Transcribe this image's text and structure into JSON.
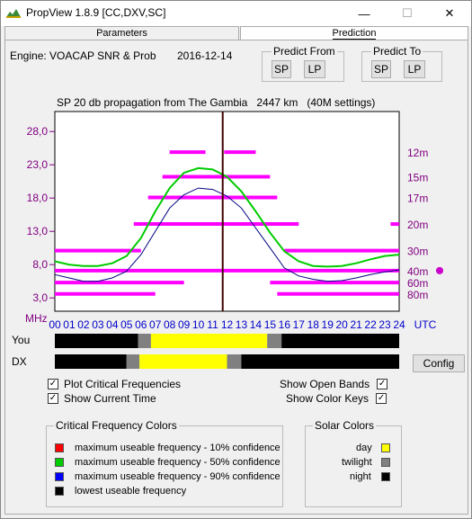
{
  "window": {
    "title": "PropView 1.8.9  [CC,DXV,SC]",
    "minimize": "—",
    "maximize": "☐",
    "close": "✕"
  },
  "tabs": [
    {
      "label": "Parameters"
    },
    {
      "label": "Prediction"
    }
  ],
  "engine": {
    "label": "Engine:  VOACAP SNR & Prob",
    "date": "2016-12-14"
  },
  "predict_from": {
    "title": "Predict From",
    "sp": "SP",
    "lp": "LP"
  },
  "predict_to": {
    "title": "Predict To",
    "sp": "SP",
    "lp": "LP"
  },
  "plot": {
    "title": "SP 20 db propagation from The Gambia   2447 km   (40M settings)",
    "y_unit": "MHz",
    "x_unit": "UTC",
    "y_ticks": [
      "28.0",
      "23.0",
      "18.0",
      "13.0",
      "8.0",
      "3.0"
    ],
    "x_ticks": [
      "00",
      "01",
      "02",
      "03",
      "04",
      "05",
      "06",
      "07",
      "08",
      "09",
      "10",
      "11",
      "12",
      "13",
      "14",
      "15",
      "16",
      "17",
      "18",
      "19",
      "20",
      "21",
      "22",
      "23",
      "24"
    ],
    "bands": [
      "12m",
      "15m",
      "17m",
      "20m",
      "30m",
      "40m",
      "60m",
      "80m"
    ],
    "selected_band": "40m"
  },
  "chart_data": {
    "type": "line",
    "title": "SP 20 db propagation from The Gambia   2447 km   (40M settings)",
    "xlabel": "UTC",
    "ylabel": "MHz",
    "xlim": [
      0,
      24
    ],
    "ylim": [
      1,
      31
    ],
    "current_time_utc": 11.7,
    "series": [
      {
        "name": "maximum useable frequency - 50% confidence",
        "color": "#00cc00",
        "x": [
          0,
          1,
          2,
          3,
          4,
          5,
          6,
          7,
          8,
          9,
          10,
          11,
          12,
          13,
          14,
          15,
          16,
          17,
          18,
          19,
          20,
          21,
          22,
          23,
          24
        ],
        "y": [
          8.5,
          8.0,
          7.8,
          7.8,
          8.2,
          9.3,
          12.0,
          16.0,
          19.5,
          21.8,
          22.5,
          22.3,
          21.2,
          19.0,
          16.0,
          12.8,
          10.0,
          8.5,
          7.8,
          7.7,
          7.8,
          8.2,
          8.8,
          9.3,
          9.5
        ]
      },
      {
        "name": "maximum useable frequency - 90% confidence",
        "color": "#000080",
        "x": [
          0,
          1,
          2,
          3,
          4,
          5,
          6,
          7,
          8,
          9,
          10,
          11,
          12,
          13,
          14,
          15,
          16,
          17,
          18,
          19,
          20,
          21,
          22,
          23,
          24
        ],
        "y": [
          6.5,
          6.0,
          5.5,
          5.5,
          6.0,
          7.0,
          9.5,
          13.0,
          16.5,
          18.5,
          19.5,
          19.3,
          18.3,
          16.5,
          13.5,
          10.5,
          7.5,
          6.3,
          5.8,
          5.5,
          5.6,
          6.0,
          6.5,
          6.9,
          7.2
        ]
      }
    ],
    "open_band_segments": [
      {
        "band": "12m",
        "mhz": 24.9,
        "from": 8,
        "to": 10.5
      },
      {
        "band": "12m",
        "mhz": 24.9,
        "from": 11.8,
        "to": 14
      },
      {
        "band": "15m",
        "mhz": 21.2,
        "from": 7.5,
        "to": 15
      },
      {
        "band": "17m",
        "mhz": 18.1,
        "from": 6.5,
        "to": 15.5
      },
      {
        "band": "20m",
        "mhz": 14.1,
        "from": 5.5,
        "to": 17
      },
      {
        "band": "20m",
        "mhz": 14.1,
        "from": 23.4,
        "to": 24
      },
      {
        "band": "30m",
        "mhz": 10.1,
        "from": 0,
        "to": 6
      },
      {
        "band": "30m",
        "mhz": 10.1,
        "from": 16,
        "to": 24
      },
      {
        "band": "40m",
        "mhz": 7.1,
        "from": 0,
        "to": 24
      },
      {
        "band": "60m",
        "mhz": 5.3,
        "from": 0,
        "to": 9
      },
      {
        "band": "60m",
        "mhz": 5.3,
        "from": 15,
        "to": 24
      },
      {
        "band": "80m",
        "mhz": 3.6,
        "from": 0,
        "to": 7
      },
      {
        "band": "80m",
        "mhz": 3.6,
        "from": 15.5,
        "to": 24
      }
    ]
  },
  "solar_rows": {
    "you_label": "You",
    "dx_label": "DX",
    "you": [
      {
        "state": "night",
        "from": 0,
        "to": 5.8
      },
      {
        "state": "twilight",
        "from": 5.8,
        "to": 6.7
      },
      {
        "state": "day",
        "from": 6.7,
        "to": 14.8
      },
      {
        "state": "twilight",
        "from": 14.8,
        "to": 15.8
      },
      {
        "state": "night",
        "from": 15.8,
        "to": 24
      }
    ],
    "dx": [
      {
        "state": "night",
        "from": 0,
        "to": 5.0
      },
      {
        "state": "twilight",
        "from": 5.0,
        "to": 5.9
      },
      {
        "state": "day",
        "from": 5.9,
        "to": 12.0
      },
      {
        "state": "twilight",
        "from": 12.0,
        "to": 13.0
      },
      {
        "state": "night",
        "from": 13.0,
        "to": 24
      }
    ]
  },
  "config_button": "Config",
  "options": {
    "plot_critical": "Plot Critical Frequencies",
    "show_current_time": "Show Current Time",
    "show_open_bands": "Show Open Bands",
    "show_color_keys": "Show Color Keys",
    "check_mark": "✓"
  },
  "crit_legend": {
    "title": "Critical Frequency Colors",
    "items": [
      {
        "label": "maximum useable frequency  - 10% confidence",
        "color": "#ff0000"
      },
      {
        "label": "maximum useable frequency  - 50% confidence",
        "color": "#00cc00"
      },
      {
        "label": "maximum useable frequency  - 90% confidence",
        "color": "#0000ff"
      },
      {
        "label": "lowest useable frequency",
        "color": "#000000"
      }
    ]
  },
  "solar_legend": {
    "title": "Solar Colors",
    "items": [
      {
        "label": "day",
        "color": "#ffff00"
      },
      {
        "label": "twilight",
        "color": "#808080"
      },
      {
        "label": "night",
        "color": "#000000"
      }
    ]
  },
  "colors": {
    "axis_text": "#800080",
    "x_tick_text": "#0000cc",
    "band_line": "#ff00ff",
    "current_time": "#400000"
  }
}
